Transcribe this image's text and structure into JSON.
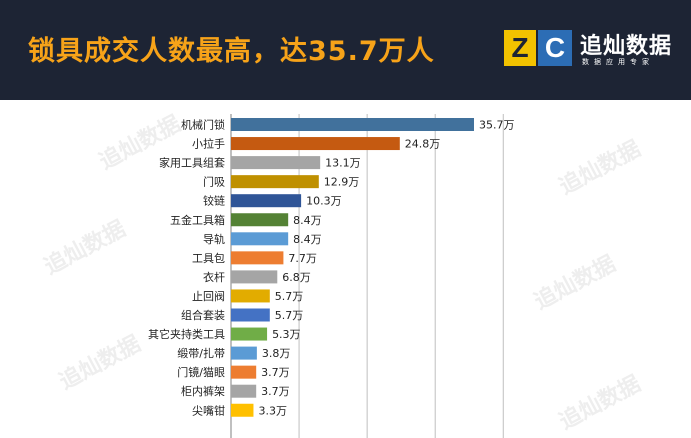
{
  "header": {
    "title": "锁具成交人数最高，达35.7万人",
    "background": "#1d2434",
    "title_color": "#f7a319"
  },
  "logo": {
    "mark_z": "Z",
    "mark_c": "C",
    "name": "追灿数据",
    "subtitle": "数据应用专家",
    "z_color": "#f2c200",
    "c_color": "#2c6db5"
  },
  "watermark": {
    "text": "追灿数据"
  },
  "chart_data": {
    "type": "bar",
    "orientation": "horizontal",
    "title": "",
    "xlabel": "",
    "ylabel": "",
    "xlim": [
      0,
      40
    ],
    "grid": true,
    "unit": "万",
    "categories": [
      "机械门锁",
      "小拉手",
      "家用工具组套",
      "门吸",
      "铰链",
      "五金工具箱",
      "导轨",
      "工具包",
      "衣杆",
      "止回阀",
      "组合套装",
      "其它夹持类工具",
      "缎带/扎带",
      "门镜/猫眼",
      "柜内裤架",
      "尖嘴钳"
    ],
    "values": [
      35.7,
      24.8,
      13.1,
      12.9,
      10.3,
      8.4,
      8.4,
      7.7,
      6.8,
      5.7,
      5.7,
      5.3,
      3.8,
      3.7,
      3.7,
      3.3
    ],
    "labels": [
      "35.7万",
      "24.8万",
      "13.1万",
      "12.9万",
      "10.3万",
      "8.4万",
      "8.4万",
      "7.7万",
      "6.8万",
      "5.7万",
      "5.7万",
      "5.3万",
      "3.8万",
      "3.7万",
      "3.7万",
      "3.3万"
    ],
    "colors": [
      "#41719c",
      "#c55a11",
      "#a5a5a5",
      "#bf9000",
      "#2f5597",
      "#548235",
      "#5b9bd5",
      "#ed7d31",
      "#a5a5a5",
      "#e2ac00",
      "#4472c4",
      "#70ad47",
      "#5b9bd5",
      "#ed7d31",
      "#a5a5a5",
      "#ffc000"
    ]
  }
}
